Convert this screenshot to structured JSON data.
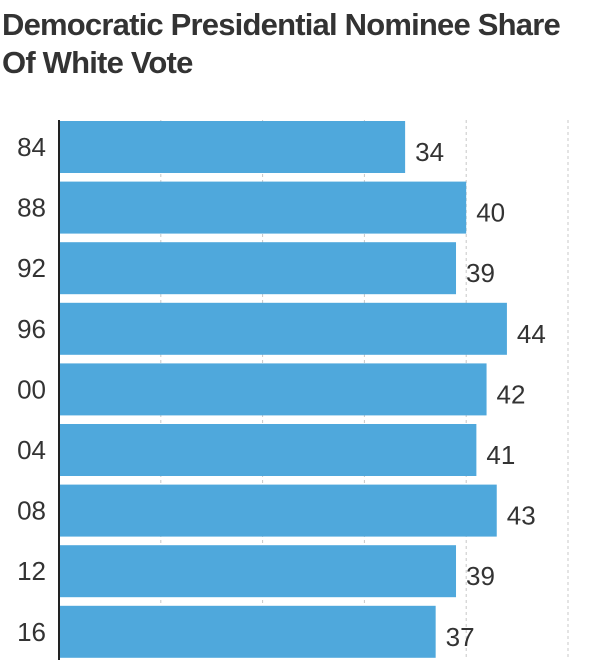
{
  "chart_data": {
    "type": "bar",
    "orientation": "horizontal",
    "title": "Democratic Presidential Nominee Share Of White Vote",
    "categories": [
      "84",
      "88",
      "92",
      "96",
      "00",
      "04",
      "08",
      "12",
      "16"
    ],
    "values": [
      34,
      40,
      39,
      44,
      42,
      41,
      43,
      39,
      37
    ],
    "xlim": [
      0,
      50
    ],
    "grid": true,
    "bar_color": "#4fa8dc",
    "text_color": "#333333"
  }
}
